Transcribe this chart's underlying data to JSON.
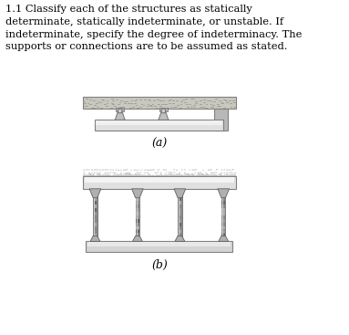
{
  "title_text": "1.1 Classify each of the structures as statically\ndeterminate, statically indeterminate, or unstable. If\nindeterminate, specify the degree of indeterminacy. The\nsupports or connections are to be assumed as stated.",
  "label_a": "(a)",
  "label_b": "(b)",
  "bg_color": "#ffffff",
  "font_size_title": 8.2,
  "font_size_label": 9,
  "title_bold": "1.1",
  "ground_tex_color": "#b8b090",
  "beam_face": "#e0e0e0",
  "beam_edge": "#808080",
  "col_face": "#909090",
  "col_edge": "#606060",
  "base_face": "#d4d4d4",
  "base_edge": "#808080",
  "support_face": "#c0c0c0",
  "support_edge": "#707070"
}
